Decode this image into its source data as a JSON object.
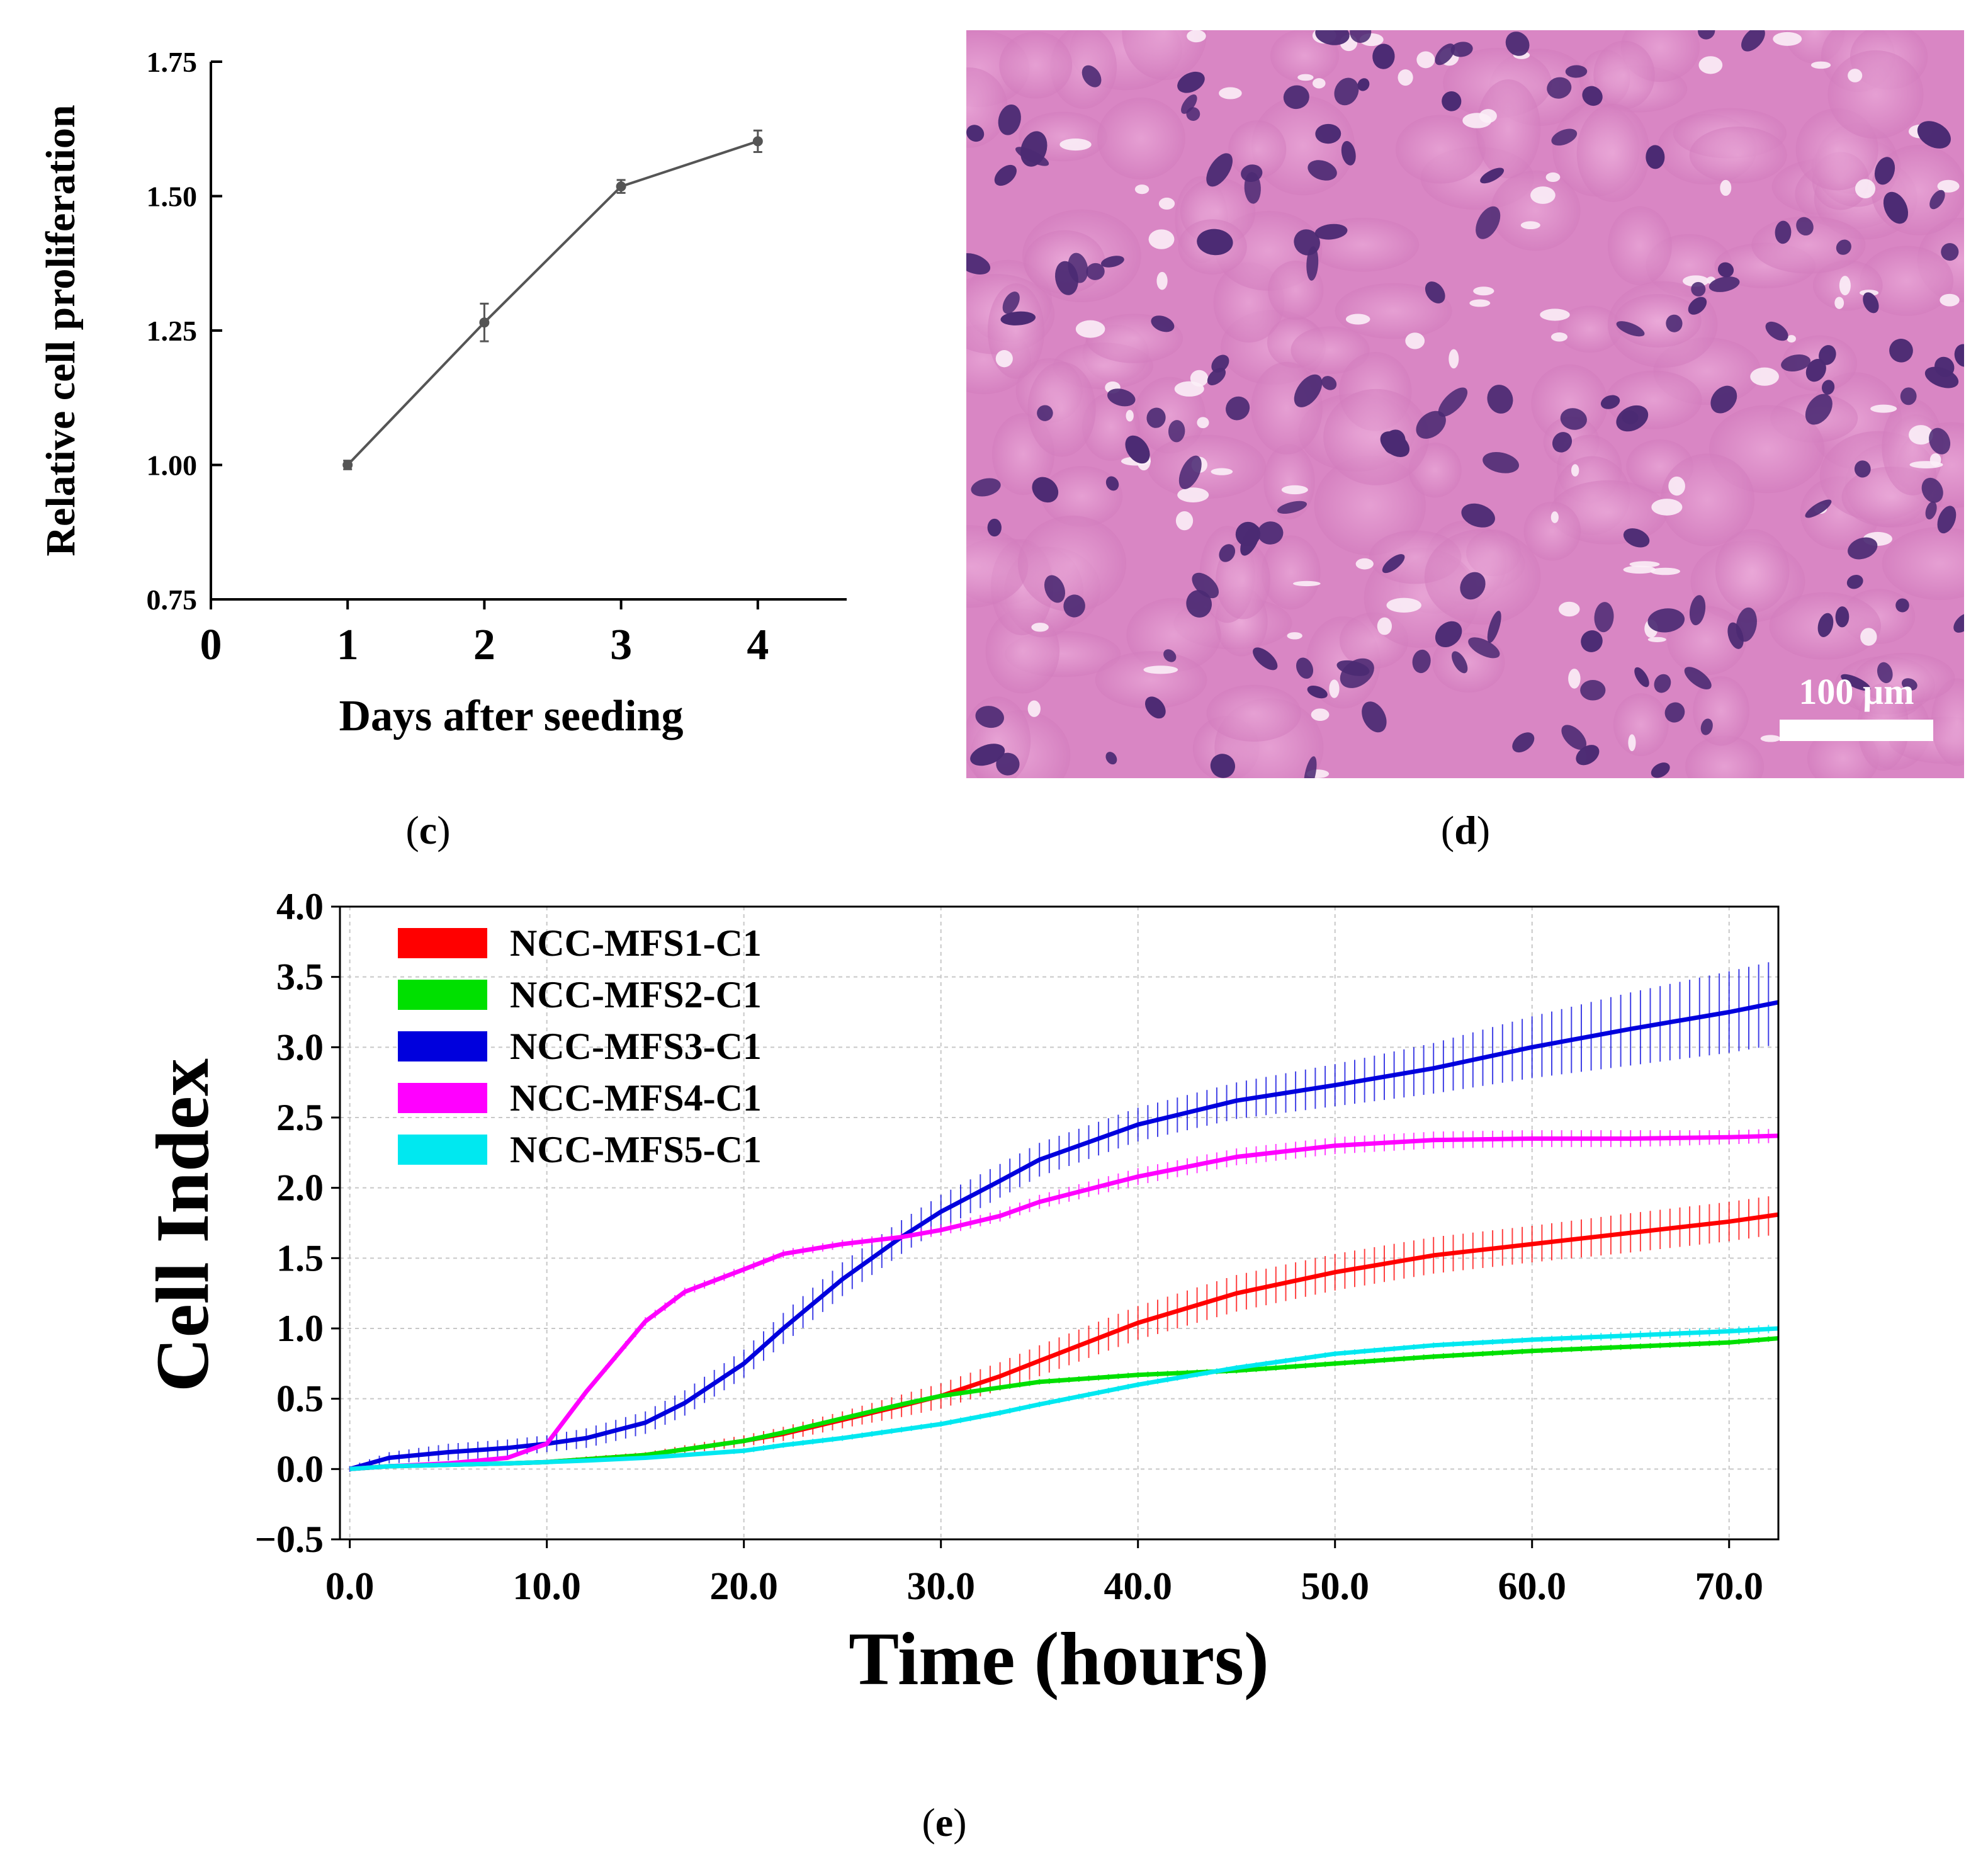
{
  "panels": {
    "c": {
      "label_open": "(",
      "label_letter": "c",
      "label_close": ")"
    },
    "d": {
      "label_open": "(",
      "label_letter": "d",
      "label_close": ")"
    },
    "e": {
      "label_open": "(",
      "label_letter": "e",
      "label_close": ")"
    }
  },
  "histology": {
    "scale_bar_label": "100 µm"
  },
  "colors": {
    "axis": "#000000",
    "line_c": "#555555",
    "grid": "#c8c8c8",
    "he_background": "#d986c4",
    "he_nuclei": "#4b2a73"
  },
  "chart_data": [
    {
      "id": "c",
      "type": "line",
      "xlabel": "Days after seeding",
      "ylabel": "Relative cell proliferation",
      "x": [
        1,
        2,
        3,
        4
      ],
      "values": [
        1.0,
        1.265,
        1.518,
        1.602
      ],
      "errors": [
        0.008,
        0.035,
        0.012,
        0.02
      ],
      "xlim": [
        0,
        4.65
      ],
      "ylim": [
        0.75,
        1.75
      ],
      "xticks": [
        0,
        1,
        2,
        3,
        4
      ],
      "xtick_labels": [
        "0",
        "1",
        "2",
        "3",
        "4"
      ],
      "yticks": [
        0.75,
        1.0,
        1.25,
        1.5,
        1.75
      ],
      "ytick_labels": [
        "0.75",
        "1.00",
        "1.25",
        "1.50",
        "1.75"
      ]
    },
    {
      "id": "e",
      "type": "line",
      "xlabel": "Time (hours)",
      "ylabel": "Cell Index",
      "xlim": [
        -0.5,
        72.5
      ],
      "ylim": [
        -0.5,
        4.0
      ],
      "xticks": [
        0,
        10,
        20,
        30,
        40,
        50,
        60,
        70
      ],
      "xtick_labels": [
        "0.0",
        "10.0",
        "20.0",
        "30.0",
        "40.0",
        "50.0",
        "60.0",
        "70.0"
      ],
      "yticks": [
        -0.5,
        0.0,
        0.5,
        1.0,
        1.5,
        2.0,
        2.5,
        3.0,
        3.5,
        4.0
      ],
      "ytick_labels": [
        "−0.5",
        "0.0",
        "0.5",
        "1.0",
        "1.5",
        "2.0",
        "2.5",
        "3.0",
        "3.5",
        "4.0"
      ],
      "grid": true,
      "legend": "top-left",
      "x": [
        0,
        2,
        5,
        8,
        10,
        12,
        15,
        17,
        20,
        22,
        25,
        28,
        30,
        33,
        35,
        40,
        45,
        50,
        55,
        60,
        65,
        70,
        72.5
      ],
      "series": [
        {
          "name": "NCC-MFS1-C1",
          "color": "#ff0000",
          "values": [
            0.0,
            0.02,
            0.03,
            0.04,
            0.05,
            0.07,
            0.1,
            0.14,
            0.2,
            0.25,
            0.35,
            0.45,
            0.52,
            0.66,
            0.77,
            1.04,
            1.25,
            1.4,
            1.52,
            1.6,
            1.68,
            1.76,
            1.81
          ],
          "errors": [
            0.01,
            0.01,
            0.01,
            0.01,
            0.01,
            0.02,
            0.02,
            0.03,
            0.04,
            0.05,
            0.06,
            0.08,
            0.09,
            0.1,
            0.11,
            0.12,
            0.13,
            0.13,
            0.13,
            0.13,
            0.14,
            0.14,
            0.14
          ]
        },
        {
          "name": "NCC-MFS2-C1",
          "color": "#00e000",
          "values": [
            0.0,
            0.02,
            0.03,
            0.04,
            0.05,
            0.07,
            0.1,
            0.14,
            0.2,
            0.26,
            0.36,
            0.46,
            0.52,
            0.58,
            0.62,
            0.67,
            0.7,
            0.75,
            0.8,
            0.84,
            0.87,
            0.9,
            0.93
          ],
          "errors": [
            0.01,
            0.01,
            0.01,
            0.01,
            0.01,
            0.01,
            0.01,
            0.02,
            0.02,
            0.02,
            0.02,
            0.02,
            0.02,
            0.02,
            0.02,
            0.02,
            0.02,
            0.02,
            0.02,
            0.02,
            0.02,
            0.02,
            0.02
          ]
        },
        {
          "name": "NCC-MFS3-C1",
          "color": "#0000dd",
          "values": [
            0.0,
            0.08,
            0.12,
            0.15,
            0.18,
            0.22,
            0.33,
            0.47,
            0.75,
            1.0,
            1.35,
            1.65,
            1.83,
            2.05,
            2.2,
            2.45,
            2.62,
            2.73,
            2.85,
            3.0,
            3.13,
            3.25,
            3.32
          ],
          "errors": [
            0.02,
            0.04,
            0.06,
            0.06,
            0.06,
            0.07,
            0.08,
            0.09,
            0.1,
            0.11,
            0.12,
            0.12,
            0.12,
            0.12,
            0.12,
            0.12,
            0.13,
            0.15,
            0.18,
            0.22,
            0.26,
            0.29,
            0.3
          ]
        },
        {
          "name": "NCC-MFS4-C1",
          "color": "#ff00ff",
          "values": [
            0.0,
            0.02,
            0.04,
            0.08,
            0.18,
            0.55,
            1.05,
            1.26,
            1.42,
            1.53,
            1.6,
            1.65,
            1.7,
            1.8,
            1.9,
            2.08,
            2.22,
            2.3,
            2.34,
            2.35,
            2.35,
            2.36,
            2.37
          ],
          "errors": [
            0.01,
            0.01,
            0.01,
            0.01,
            0.02,
            0.02,
            0.03,
            0.03,
            0.03,
            0.03,
            0.03,
            0.03,
            0.04,
            0.04,
            0.05,
            0.06,
            0.06,
            0.06,
            0.06,
            0.06,
            0.06,
            0.05,
            0.05
          ]
        },
        {
          "name": "NCC-MFS5-C1",
          "color": "#00e8f0",
          "values": [
            0.0,
            0.02,
            0.03,
            0.04,
            0.05,
            0.06,
            0.08,
            0.1,
            0.13,
            0.17,
            0.22,
            0.28,
            0.32,
            0.4,
            0.46,
            0.6,
            0.72,
            0.82,
            0.88,
            0.92,
            0.95,
            0.98,
            1.0
          ],
          "errors": [
            0.01,
            0.01,
            0.01,
            0.01,
            0.01,
            0.01,
            0.01,
            0.01,
            0.02,
            0.02,
            0.02,
            0.02,
            0.02,
            0.02,
            0.02,
            0.02,
            0.02,
            0.02,
            0.02,
            0.02,
            0.03,
            0.03,
            0.03
          ]
        }
      ]
    }
  ]
}
